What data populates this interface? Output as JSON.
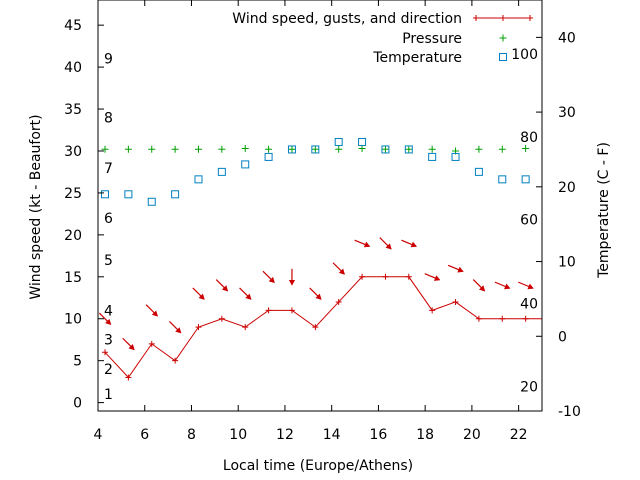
{
  "chart_data": {
    "type": "line",
    "xlabel": "Local time (Europe/Athens)",
    "ylabel": "Wind speed (kt - Beaufort)",
    "y2label": "Temperature (C - F)",
    "xlim": [
      4,
      23
    ],
    "ylim": [
      -1,
      48
    ],
    "y2lim": [
      -10,
      45
    ],
    "x_ticks": [
      4,
      6,
      8,
      10,
      12,
      14,
      16,
      18,
      20,
      22
    ],
    "y_ticks": [
      0,
      5,
      10,
      15,
      20,
      25,
      30,
      35,
      40,
      45
    ],
    "y2_ticks": [
      -10,
      0,
      10,
      20,
      30,
      40
    ],
    "beaufort_labels": [
      {
        "text": "1",
        "y": 1
      },
      {
        "text": "2",
        "y": 4
      },
      {
        "text": "3",
        "y": 7.5
      },
      {
        "text": "4",
        "y": 11
      },
      {
        "text": "5",
        "y": 17
      },
      {
        "text": "6",
        "y": 22
      },
      {
        "text": "7",
        "y": 28
      },
      {
        "text": "8",
        "y": 34
      },
      {
        "text": "9",
        "y": 41
      }
    ],
    "fahrenheit_labels": [
      {
        "text": "20",
        "temp": -6.7
      },
      {
        "text": "40",
        "temp": 4.4
      },
      {
        "text": "60",
        "temp": 15.6
      },
      {
        "text": "80",
        "temp": 26.7
      },
      {
        "text": "100",
        "temp": 37.8
      }
    ],
    "legend_position": "top-right",
    "series": [
      {
        "name": "Wind speed, gusts, and direction",
        "color": "#cc0000",
        "marker": "plus-line",
        "x": [
          4.3,
          5.3,
          6.3,
          7.3,
          8.3,
          9.3,
          10.3,
          11.3,
          12.3,
          13.3,
          14.3,
          15.3,
          16.3,
          17.3,
          18.3,
          19.3,
          20.3,
          21.3,
          22.3
        ],
        "values": [
          6,
          3,
          7,
          5,
          9,
          10,
          9,
          11,
          11,
          9,
          12,
          15,
          15,
          15,
          11,
          12,
          10,
          10,
          10
        ],
        "extends_to_x": 23,
        "direction_arrows": [
          {
            "x": 4.3,
            "y": 10,
            "dir": "NW"
          },
          {
            "x": 5.3,
            "y": 7,
            "dir": "NW"
          },
          {
            "x": 6.3,
            "y": 11,
            "dir": "NW"
          },
          {
            "x": 7.3,
            "y": 9,
            "dir": "NW"
          },
          {
            "x": 8.3,
            "y": 13,
            "dir": "NW"
          },
          {
            "x": 9.3,
            "y": 14,
            "dir": "NW"
          },
          {
            "x": 10.3,
            "y": 13,
            "dir": "NW"
          },
          {
            "x": 11.3,
            "y": 15,
            "dir": "NW"
          },
          {
            "x": 12.3,
            "y": 15,
            "dir": "N"
          },
          {
            "x": 13.3,
            "y": 13,
            "dir": "NW"
          },
          {
            "x": 14.3,
            "y": 16,
            "dir": "NW"
          },
          {
            "x": 15.3,
            "y": 19,
            "dir": "WNW"
          },
          {
            "x": 16.3,
            "y": 19,
            "dir": "NW"
          },
          {
            "x": 17.3,
            "y": 19,
            "dir": "WNW"
          },
          {
            "x": 18.3,
            "y": 15,
            "dir": "WNW"
          },
          {
            "x": 19.3,
            "y": 16,
            "dir": "WNW"
          },
          {
            "x": 20.3,
            "y": 14,
            "dir": "NW"
          },
          {
            "x": 21.3,
            "y": 14,
            "dir": "WNW"
          },
          {
            "x": 22.3,
            "y": 14,
            "dir": "WNW"
          }
        ]
      },
      {
        "name": "Pressure",
        "color": "#00a000",
        "marker": "plus",
        "x": [
          4.3,
          5.3,
          6.3,
          7.3,
          8.3,
          9.3,
          10.3,
          11.3,
          12.3,
          13.3,
          14.3,
          15.3,
          16.3,
          17.3,
          18.3,
          19.3,
          20.3,
          21.3,
          22.3
        ],
        "values": [
          30.2,
          30.2,
          30.2,
          30.2,
          30.2,
          30.2,
          30.3,
          30.2,
          30.2,
          30.2,
          30.2,
          30.3,
          30.2,
          30.2,
          30.2,
          30.0,
          30.2,
          30.2,
          30.3
        ]
      },
      {
        "name": "Temperature",
        "color": "#0080c0",
        "marker": "square",
        "axis": "y2",
        "x": [
          4.3,
          5.3,
          6.3,
          7.3,
          8.3,
          9.3,
          10.3,
          11.3,
          12.3,
          13.3,
          14.3,
          15.3,
          16.3,
          17.3,
          18.3,
          19.3,
          20.3,
          21.3,
          22.3
        ],
        "values": [
          19,
          19,
          18,
          19,
          21,
          22,
          23,
          24,
          25,
          25,
          26,
          26,
          25,
          25,
          24,
          24,
          22,
          21,
          21
        ]
      }
    ]
  }
}
